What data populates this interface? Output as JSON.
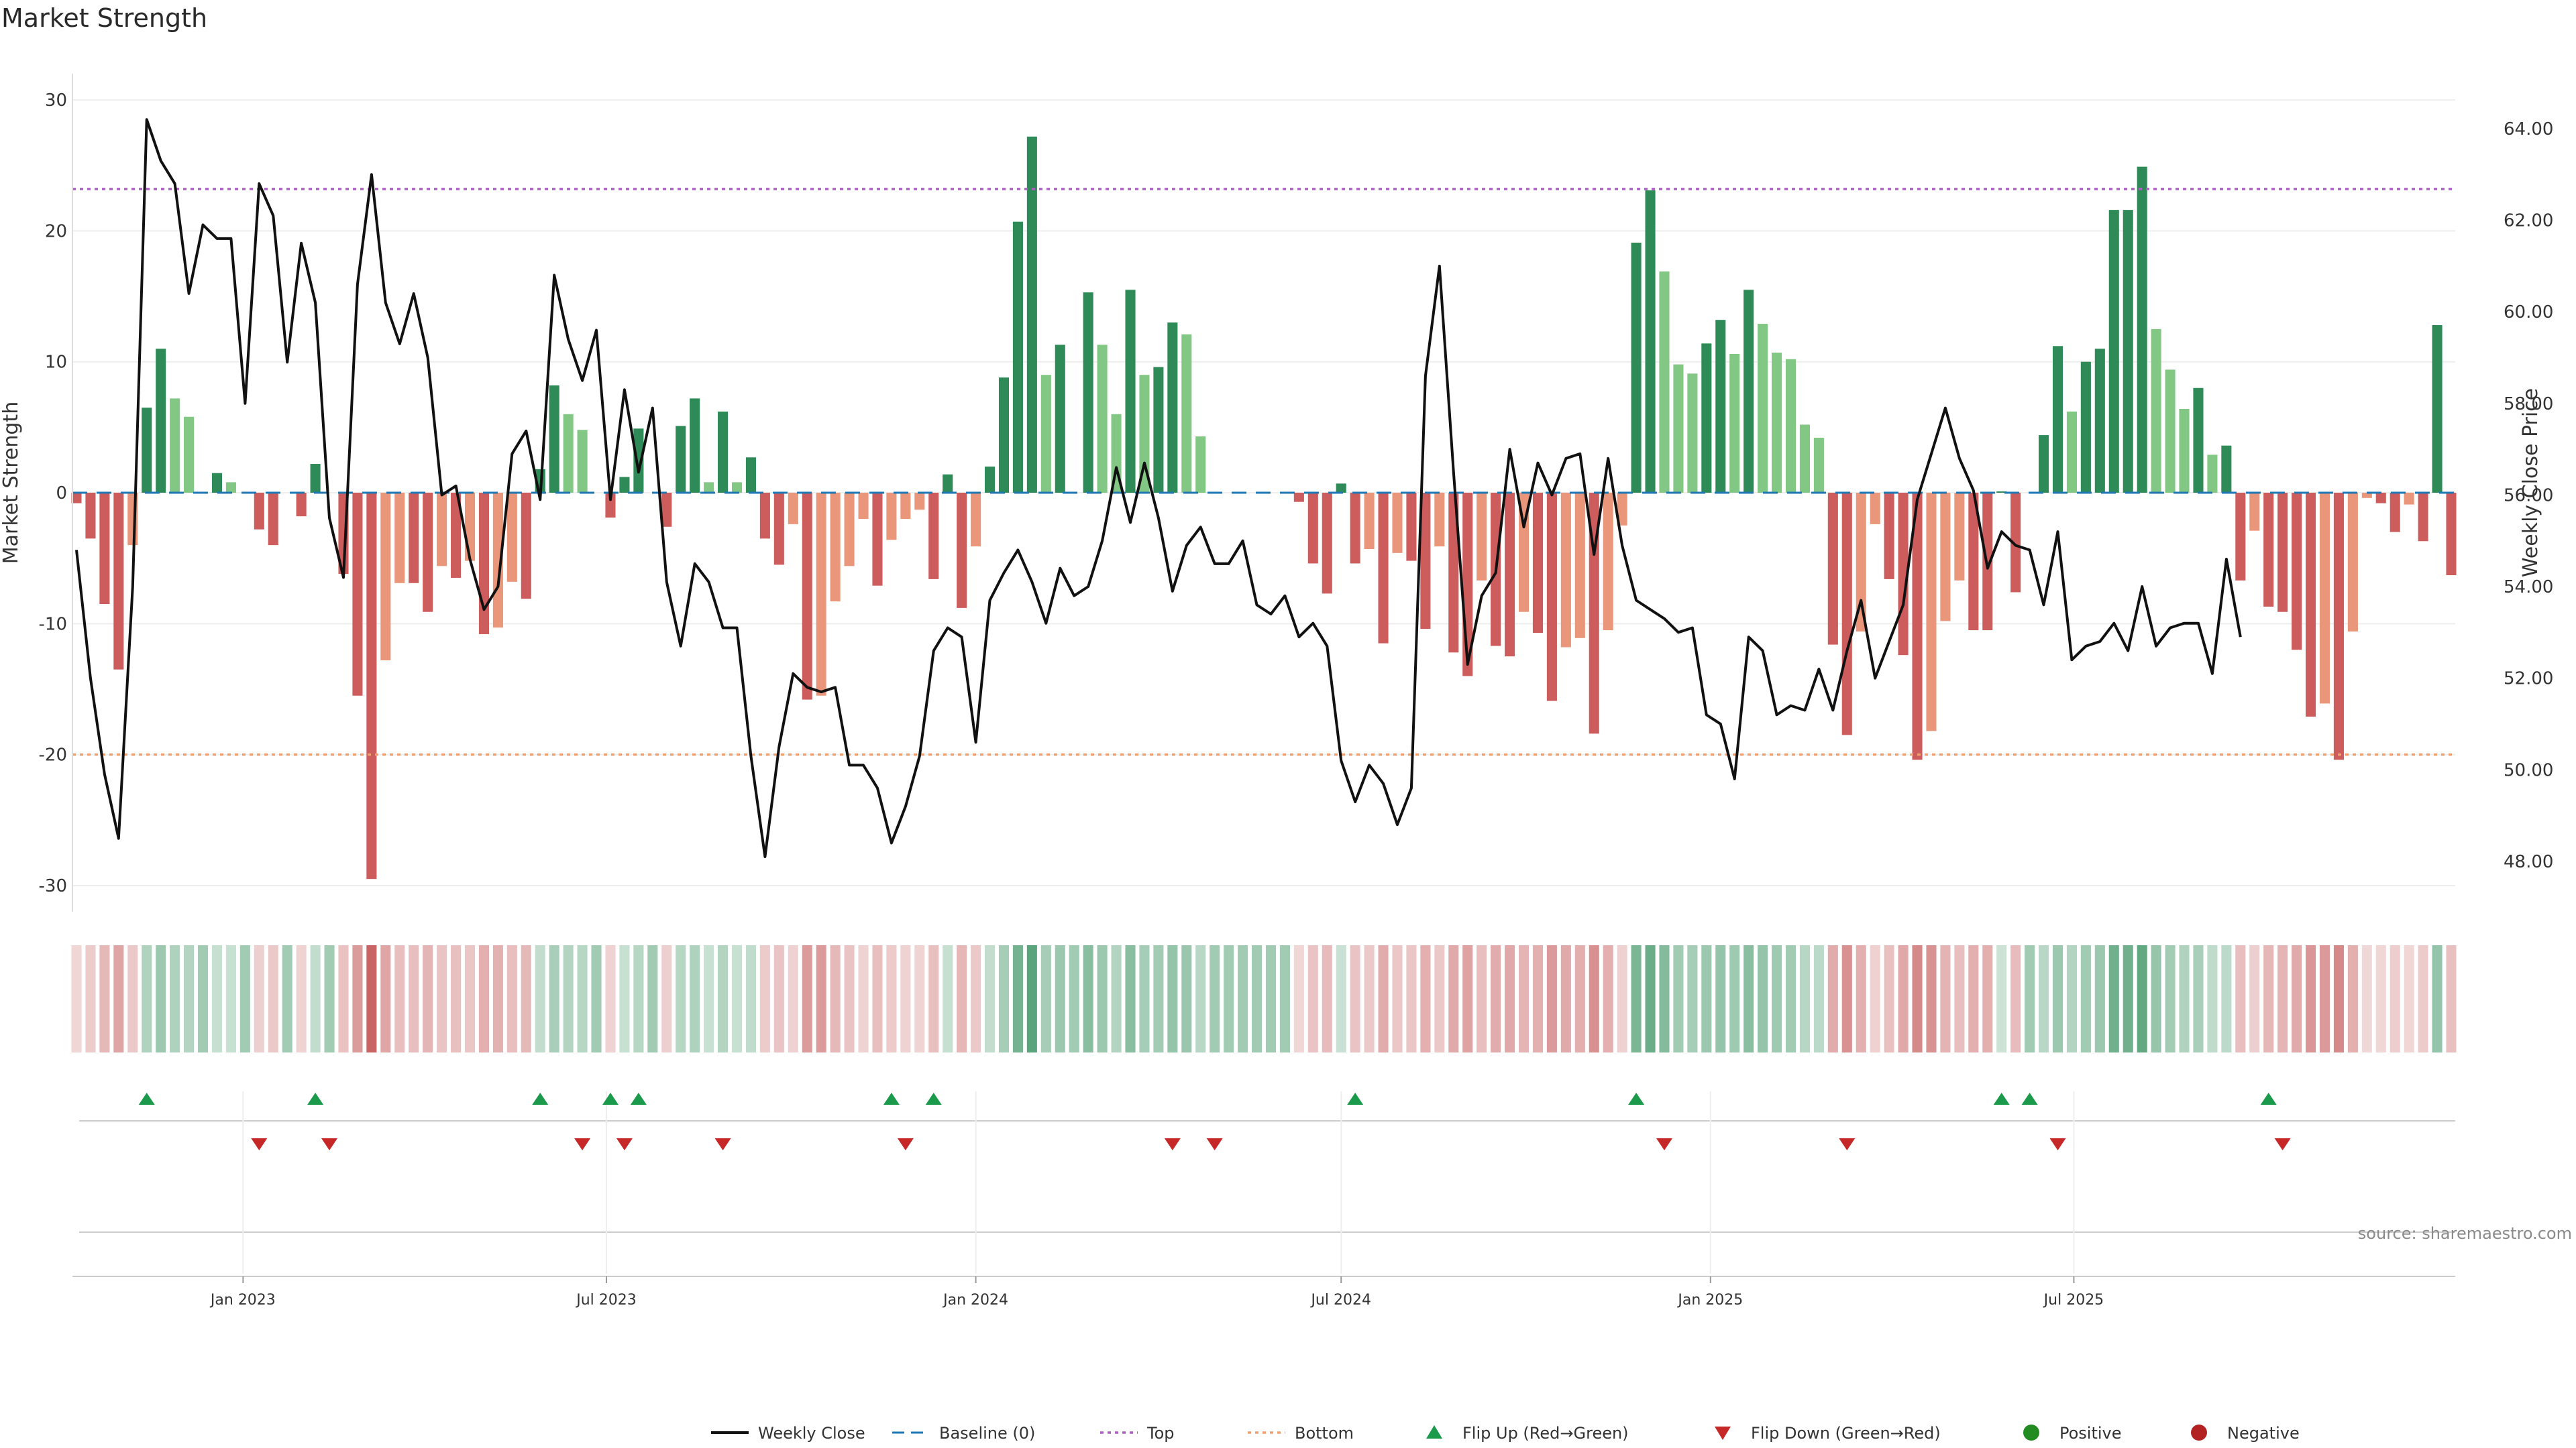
{
  "chart_data": {
    "type": "bar",
    "title": "Market Strength",
    "ylabel_left": "Market Strength",
    "ylabel_right": "Weekly Close Price",
    "source": "source: sharemaestro.com",
    "left_ylim": [
      -32,
      32
    ],
    "left_yticks": [
      30,
      20,
      10,
      0,
      -10,
      -20,
      -30
    ],
    "right_ylim": [
      46.9,
      65.2
    ],
    "right_yticks": [
      "48.00",
      "50.00",
      "52.00",
      "54.00",
      "56.00",
      "58.00",
      "60.00",
      "62.00",
      "64.00"
    ],
    "top_threshold": 23.2,
    "bottom_threshold": -20.0,
    "x_start": "2022-10-10",
    "week_step_days": 7,
    "xticks": [
      {
        "date": "2023-01-01",
        "label": "Jan 2023"
      },
      {
        "date": "2023-07-01",
        "label": "Jul 2023"
      },
      {
        "date": "2024-01-01",
        "label": "Jan 2024"
      },
      {
        "date": "2024-07-01",
        "label": "Jul 2024"
      },
      {
        "date": "2025-01-01",
        "label": "Jan 2025"
      },
      {
        "date": "2025-07-01",
        "label": "Jul 2025"
      }
    ],
    "strength": [
      -0.8,
      -3.5,
      -8.5,
      -13.5,
      -4,
      6.5,
      11,
      7.2,
      5.8,
      0,
      1.5,
      0.8,
      0,
      -2.8,
      -4,
      0,
      -1.8,
      2.2,
      0,
      -6.2,
      -15.5,
      -29.5,
      -12.8,
      -6.9,
      -6.9,
      -9.1,
      -5.6,
      -6.5,
      -5.2,
      -10.8,
      -10.3,
      -6.8,
      -8.1,
      1.8,
      8.2,
      6,
      4.8,
      0,
      -1.9,
      1.2,
      4.9,
      0,
      -2.6,
      5.1,
      7.2,
      0.8,
      6.2,
      0.8,
      2.7,
      -3.5,
      -5.5,
      -2.4,
      -15.8,
      -15.5,
      -8.3,
      -5.6,
      -2,
      -7.1,
      -3.6,
      -2,
      -1.3,
      -6.6,
      1.4,
      -8.8,
      -4.1,
      2,
      8.8,
      20.7,
      27.2,
      9,
      11.3,
      0,
      15.3,
      11.3,
      6,
      15.5,
      9,
      9.6,
      13,
      12.1,
      4.3,
      0,
      0,
      0,
      0,
      0,
      0,
      -0.7,
      -5.4,
      -7.7,
      0.7,
      -5.4,
      -4.3,
      -11.5,
      -4.6,
      -5.2,
      -10.4,
      -4.1,
      -12.2,
      -14,
      -6.7,
      -11.7,
      -12.5,
      -9.1,
      -10.7,
      -15.9,
      -11.8,
      -11.1,
      -18.4,
      -10.5,
      -2.5,
      19.1,
      23.1,
      16.9,
      9.8,
      9.1,
      11.4,
      13.2,
      10.6,
      15.5,
      12.9,
      10.7,
      10.2,
      5.2,
      4.2,
      -11.6,
      -18.5,
      -10.6,
      -2.4,
      -6.6,
      -12.4,
      -20.4,
      -18.2,
      -9.8,
      -6.7,
      -10.5,
      -10.5,
      0.1,
      -7.6,
      0,
      4.4,
      11.2,
      6.2,
      10,
      11,
      21.6,
      21.6,
      24.9,
      12.5,
      9.4,
      6.4,
      8,
      2.9,
      3.6,
      -6.7,
      -2.9,
      -8.7,
      -9.1,
      -12,
      -17.1,
      -16.1,
      -20.4,
      -10.6,
      -0.4,
      -0.8,
      -3,
      -0.9,
      -3.7,
      12.8,
      -6.3
    ],
    "price": [
      54.8,
      52.0,
      49.9,
      48.5,
      54.0,
      64.2,
      63.3,
      62.8,
      60.4,
      61.9,
      61.6,
      61.6,
      58.0,
      62.8,
      62.1,
      58.9,
      61.5,
      60.2,
      55.5,
      54.2,
      60.6,
      63.0,
      60.2,
      59.3,
      60.4,
      59.0,
      56.0,
      56.2,
      54.6,
      53.5,
      54.0,
      56.9,
      57.4,
      55.9,
      60.8,
      59.4,
      58.5,
      59.6,
      55.9,
      58.3,
      56.5,
      57.9,
      54.1,
      52.7,
      54.5,
      54.1,
      53.1,
      53.1,
      50.3,
      48.1,
      50.5,
      52.1,
      51.8,
      51.7,
      51.8,
      50.1,
      50.1,
      49.6,
      48.4,
      49.2,
      50.3,
      52.6,
      53.1,
      52.9,
      50.6,
      53.7,
      54.3,
      54.8,
      54.1,
      53.2,
      54.4,
      53.8,
      54.0,
      55.0,
      56.6,
      55.4,
      56.7,
      55.5,
      53.9,
      54.9,
      55.3,
      54.5,
      54.5,
      55.0,
      53.6,
      53.4,
      53.8,
      52.9,
      53.2,
      52.7,
      50.2,
      49.3,
      50.1,
      49.7,
      48.8,
      49.6,
      58.6,
      61.0,
      56.5,
      52.3,
      53.8,
      54.3,
      57.0,
      55.3,
      56.7,
      56.0,
      56.8,
      56.9,
      54.7,
      56.8,
      54.9,
      53.7,
      53.5,
      53.3,
      53.0,
      53.1,
      51.2,
      51.0,
      49.8,
      52.9,
      52.6,
      51.2,
      51.4,
      51.3,
      52.2,
      51.3,
      52.6,
      53.7,
      52.0,
      52.8,
      53.6,
      55.9,
      56.9,
      57.9,
      56.8,
      56.1,
      54.4,
      55.2,
      54.9,
      54.8,
      53.6,
      55.2,
      52.4,
      52.7,
      52.8,
      53.2,
      52.6,
      54.0,
      52.7,
      53.1,
      53.2,
      53.2,
      52.1,
      54.6,
      52.9
    ],
    "flip_up_weeks": [
      5,
      17,
      33,
      38,
      40,
      58,
      61,
      91,
      111,
      137,
      139,
      156
    ],
    "flip_down_weeks": [
      13,
      18,
      36,
      39,
      46,
      59,
      78,
      81,
      113,
      126,
      141,
      157
    ],
    "legend": [
      {
        "key": "weekly_close",
        "label": "Weekly Close"
      },
      {
        "key": "baseline",
        "label": "Baseline (0)"
      },
      {
        "key": "top",
        "label": "Top"
      },
      {
        "key": "bottom",
        "label": "Bottom"
      },
      {
        "key": "flip_up",
        "label": "Flip Up (Red→Green)"
      },
      {
        "key": "flip_down",
        "label": "Flip Down (Green→Red)"
      },
      {
        "key": "positive",
        "label": "Positive"
      },
      {
        "key": "negative",
        "label": "Negative"
      }
    ],
    "colors": {
      "pos_dark": "#2e8b57",
      "pos_light": "#82c784",
      "neg_dark": "#cd5c5c",
      "neg_light": "#e9967a",
      "price_line": "#111111",
      "baseline": "#1f77b4",
      "top": "#b05fc4",
      "bottom": "#f0a070",
      "flip_up": "#1a9a4a",
      "flip_down": "#c62828",
      "positive_dot": "#228b22",
      "negative_dot": "#b22222"
    }
  }
}
